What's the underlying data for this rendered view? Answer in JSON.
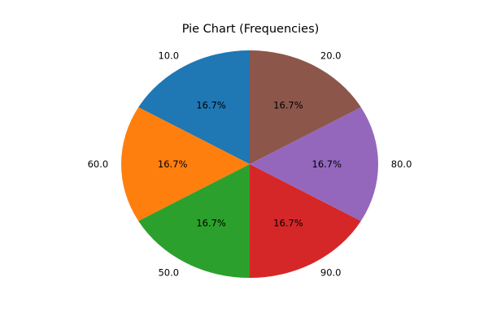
{
  "chart_data": {
    "type": "pie",
    "title": "Pie Chart (Frequencies)",
    "slices": [
      {
        "label": "10.0",
        "value": 1,
        "percent_label": "16.7%",
        "color": "#1f77b4"
      },
      {
        "label": "60.0",
        "value": 1,
        "percent_label": "16.7%",
        "color": "#ff7f0e"
      },
      {
        "label": "50.0",
        "value": 1,
        "percent_label": "16.7%",
        "color": "#2ca02c"
      },
      {
        "label": "90.0",
        "value": 1,
        "percent_label": "16.7%",
        "color": "#d62728"
      },
      {
        "label": "80.0",
        "value": 1,
        "percent_label": "16.7%",
        "color": "#9467bd"
      },
      {
        "label": "20.0",
        "value": 1,
        "percent_label": "16.7%",
        "color": "#8c564b"
      }
    ],
    "start_angle_deg": 90,
    "direction": "counterclockwise",
    "legend": "none"
  }
}
